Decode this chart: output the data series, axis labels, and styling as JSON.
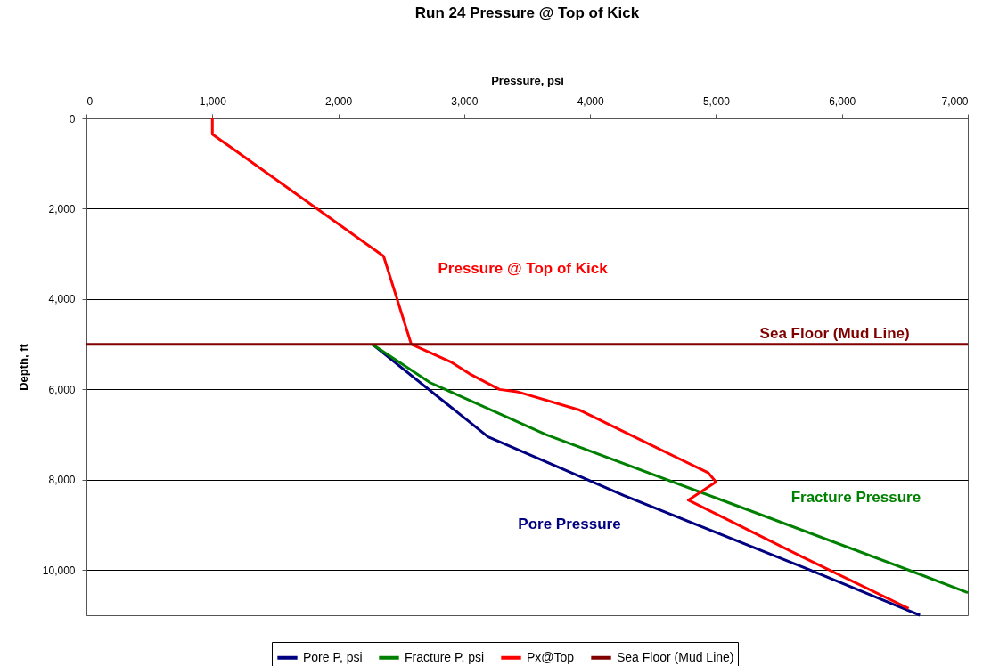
{
  "chart_data": {
    "type": "line",
    "title": "Run 24 Pressure @ Top of Kick",
    "xlabel": "Pressure, psi",
    "ylabel": "Depth, ft",
    "xlim": [
      0,
      7000
    ],
    "xticks": [
      0,
      {
        "value": 1000,
        "label": "1,000"
      },
      {
        "value": 2000,
        "label": "2,000"
      },
      {
        "value": 3000,
        "label": "3,000"
      },
      {
        "value": 4000,
        "label": "4,000"
      },
      {
        "value": 5000,
        "label": "5,000"
      },
      {
        "value": 6000,
        "label": "6,000"
      },
      {
        "value": 7000,
        "label": "7,000"
      }
    ],
    "ylim": [
      11000,
      0
    ],
    "yticks": [
      0,
      {
        "value": 2000,
        "label": "2,000"
      },
      {
        "value": 4000,
        "label": "4,000"
      },
      {
        "value": 6000,
        "label": "6,000"
      },
      {
        "value": 8000,
        "label": "8,000"
      },
      {
        "value": 10000,
        "label": "10,000"
      }
    ],
    "grid": "y",
    "legend": "bottom",
    "series": [
      {
        "name": "Pore P, psi",
        "color": "#000080",
        "x": [
          2270,
          3190,
          3940,
          4270,
          5750,
          6620
        ],
        "values": [
          5000,
          7050,
          7950,
          8350,
          10000,
          11000
        ]
      },
      {
        "name": "Fracture P, psi",
        "color": "#008000",
        "x": [
          2270,
          2730,
          3650,
          5190,
          6530,
          7000
        ],
        "values": [
          5000,
          5850,
          7000,
          8600,
          10000,
          10500
        ]
      },
      {
        "name": "Px@Top",
        "color": "#ff0000",
        "x": [
          1000,
          1000,
          2360,
          2580,
          2900,
          3040,
          3280,
          3420,
          3910,
          4940,
          5000,
          4780,
          5680,
          6530
        ],
        "values": [
          0,
          350,
          3050,
          5000,
          5400,
          5650,
          6000,
          6050,
          6450,
          7850,
          8050,
          8450,
          9700,
          10850
        ]
      },
      {
        "name": "Sea Floor (Mud Line)",
        "color": "#800000",
        "x": [
          0,
          7000
        ],
        "values": [
          5000,
          5000
        ]
      }
    ],
    "annotations": [
      "Pore Pressure",
      "Fracture Pressure",
      "Pressure @ Top of Kick",
      "Sea Floor (Mud Line)"
    ]
  }
}
